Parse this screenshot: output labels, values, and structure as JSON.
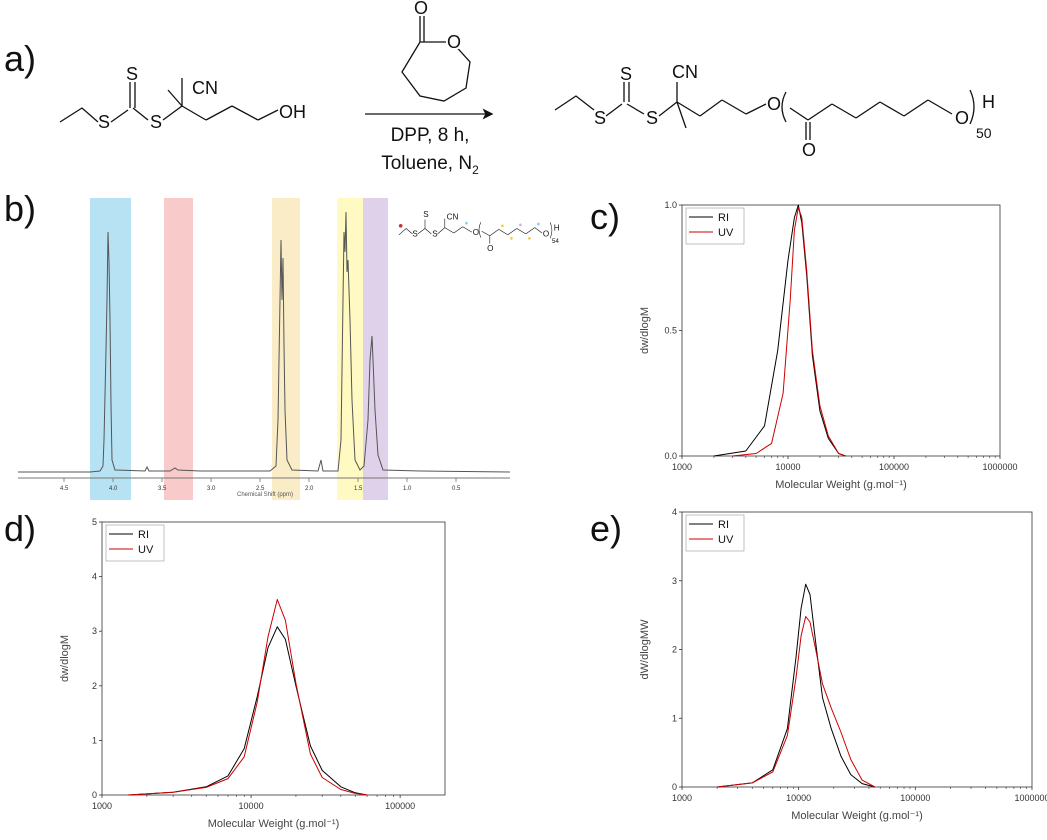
{
  "labels": {
    "a": "a)",
    "b": "b)",
    "c": "c)",
    "d": "d)",
    "e": "e)"
  },
  "scheme": {
    "reactant_oh": "OH",
    "reactant_cn": "CN",
    "product_cn": "CN",
    "atom_s": "S",
    "atom_o": "O",
    "product_h": "H",
    "product_sub": "50",
    "reagent_line1": "DPP, 8 h,",
    "reagent_line2": "Toluene, N",
    "reagent_line2_sub": "2"
  },
  "nmr": {
    "xlabel": "Chemical Shift (ppm)",
    "ticks": [
      "4.5",
      "4.0",
      "3.5",
      "3.0",
      "2.5",
      "2.0",
      "1.5",
      "1.0",
      "0.5"
    ],
    "highlight_colors": [
      "#87CEEB",
      "#F4A6A6",
      "#F5DFA0",
      "#FFF59A",
      "#C9B2DC"
    ],
    "inset_h": "H",
    "inset_sub": "54",
    "inset_cn": "CN"
  },
  "chart_data": [
    {
      "panel": "c",
      "type": "line",
      "xlabel": "Molecular Weight (g.mol⁻¹)",
      "ylabel": "dw/dlogM",
      "xscale": "log",
      "xlim": [
        1000,
        1000000
      ],
      "ylim": [
        0,
        1.0
      ],
      "xticks": [
        "1000",
        "10000",
        "100000",
        "1000000"
      ],
      "yticks": [
        "0.0",
        "0.5",
        "1.0"
      ],
      "legend_position": "top-left",
      "colors": {
        "RI": "#000000",
        "UV": "#CC0000"
      },
      "series": [
        {
          "name": "RI",
          "x": [
            2000,
            4000,
            6000,
            8000,
            10000,
            11500,
            12500,
            13500,
            15000,
            17000,
            20000,
            24000,
            30000,
            35000
          ],
          "y": [
            0.0,
            0.02,
            0.12,
            0.42,
            0.78,
            0.95,
            1.0,
            0.93,
            0.72,
            0.4,
            0.18,
            0.07,
            0.01,
            0.0
          ]
        },
        {
          "name": "UV",
          "x": [
            3000,
            5000,
            7000,
            9000,
            10500,
            11500,
            12500,
            13500,
            15000,
            17000,
            20000,
            24000,
            30000,
            35000
          ],
          "y": [
            0.0,
            0.01,
            0.05,
            0.25,
            0.62,
            0.9,
            0.99,
            0.95,
            0.74,
            0.42,
            0.2,
            0.08,
            0.01,
            0.0
          ]
        }
      ]
    },
    {
      "panel": "d",
      "type": "line",
      "xlabel": "Molecular Weight (g.mol⁻¹)",
      "ylabel": "dw/dlogM",
      "xscale": "log",
      "xlim": [
        1000,
        200000
      ],
      "ylim": [
        0,
        5
      ],
      "xticks": [
        "1000",
        "10000",
        "100000"
      ],
      "yticks": [
        "0",
        "1",
        "2",
        "3",
        "4",
        "5"
      ],
      "legend_position": "top-left",
      "colors": {
        "RI": "#000000",
        "UV": "#CC0000"
      },
      "series": [
        {
          "name": "RI",
          "x": [
            1500,
            3000,
            5000,
            7000,
            9000,
            11000,
            13000,
            15000,
            17000,
            20000,
            25000,
            30000,
            40000,
            50000,
            60000
          ],
          "y": [
            0.0,
            0.05,
            0.15,
            0.35,
            0.85,
            1.8,
            2.7,
            3.08,
            2.85,
            2.0,
            0.9,
            0.45,
            0.15,
            0.04,
            0.0
          ]
        },
        {
          "name": "UV",
          "x": [
            1500,
            3000,
            5000,
            7000,
            9000,
            11000,
            13000,
            15000,
            17000,
            20000,
            25000,
            30000,
            40000,
            50000,
            60000
          ],
          "y": [
            0.0,
            0.05,
            0.14,
            0.3,
            0.7,
            1.7,
            2.9,
            3.58,
            3.2,
            2.05,
            0.75,
            0.32,
            0.1,
            0.03,
            0.0
          ]
        }
      ]
    },
    {
      "panel": "e",
      "type": "line",
      "xlabel": "Molecular Weight (g.mol⁻¹)",
      "ylabel": "dW/dlogMW",
      "xscale": "log",
      "xlim": [
        1000,
        1000000
      ],
      "ylim": [
        0,
        4
      ],
      "xticks": [
        "1000",
        "10000",
        "100000",
        "1000000"
      ],
      "yticks": [
        "0",
        "1",
        "2",
        "3",
        "4"
      ],
      "legend_position": "top-left",
      "colors": {
        "RI": "#000000",
        "UV": "#CC0000"
      },
      "series": [
        {
          "name": "RI",
          "x": [
            2000,
            4000,
            6000,
            8000,
            9500,
            10500,
            11500,
            12500,
            14000,
            16000,
            19000,
            23000,
            28000,
            35000,
            45000
          ],
          "y": [
            0.0,
            0.06,
            0.25,
            0.85,
            1.9,
            2.6,
            2.95,
            2.8,
            2.1,
            1.3,
            0.85,
            0.45,
            0.18,
            0.05,
            0.0
          ]
        },
        {
          "name": "UV",
          "x": [
            2000,
            4000,
            6000,
            8000,
            9500,
            10500,
            11500,
            12500,
            14000,
            16000,
            19000,
            23000,
            28000,
            35000,
            45000
          ],
          "y": [
            0.0,
            0.06,
            0.22,
            0.75,
            1.6,
            2.2,
            2.48,
            2.4,
            2.0,
            1.5,
            1.15,
            0.8,
            0.4,
            0.1,
            0.0
          ]
        }
      ]
    }
  ]
}
